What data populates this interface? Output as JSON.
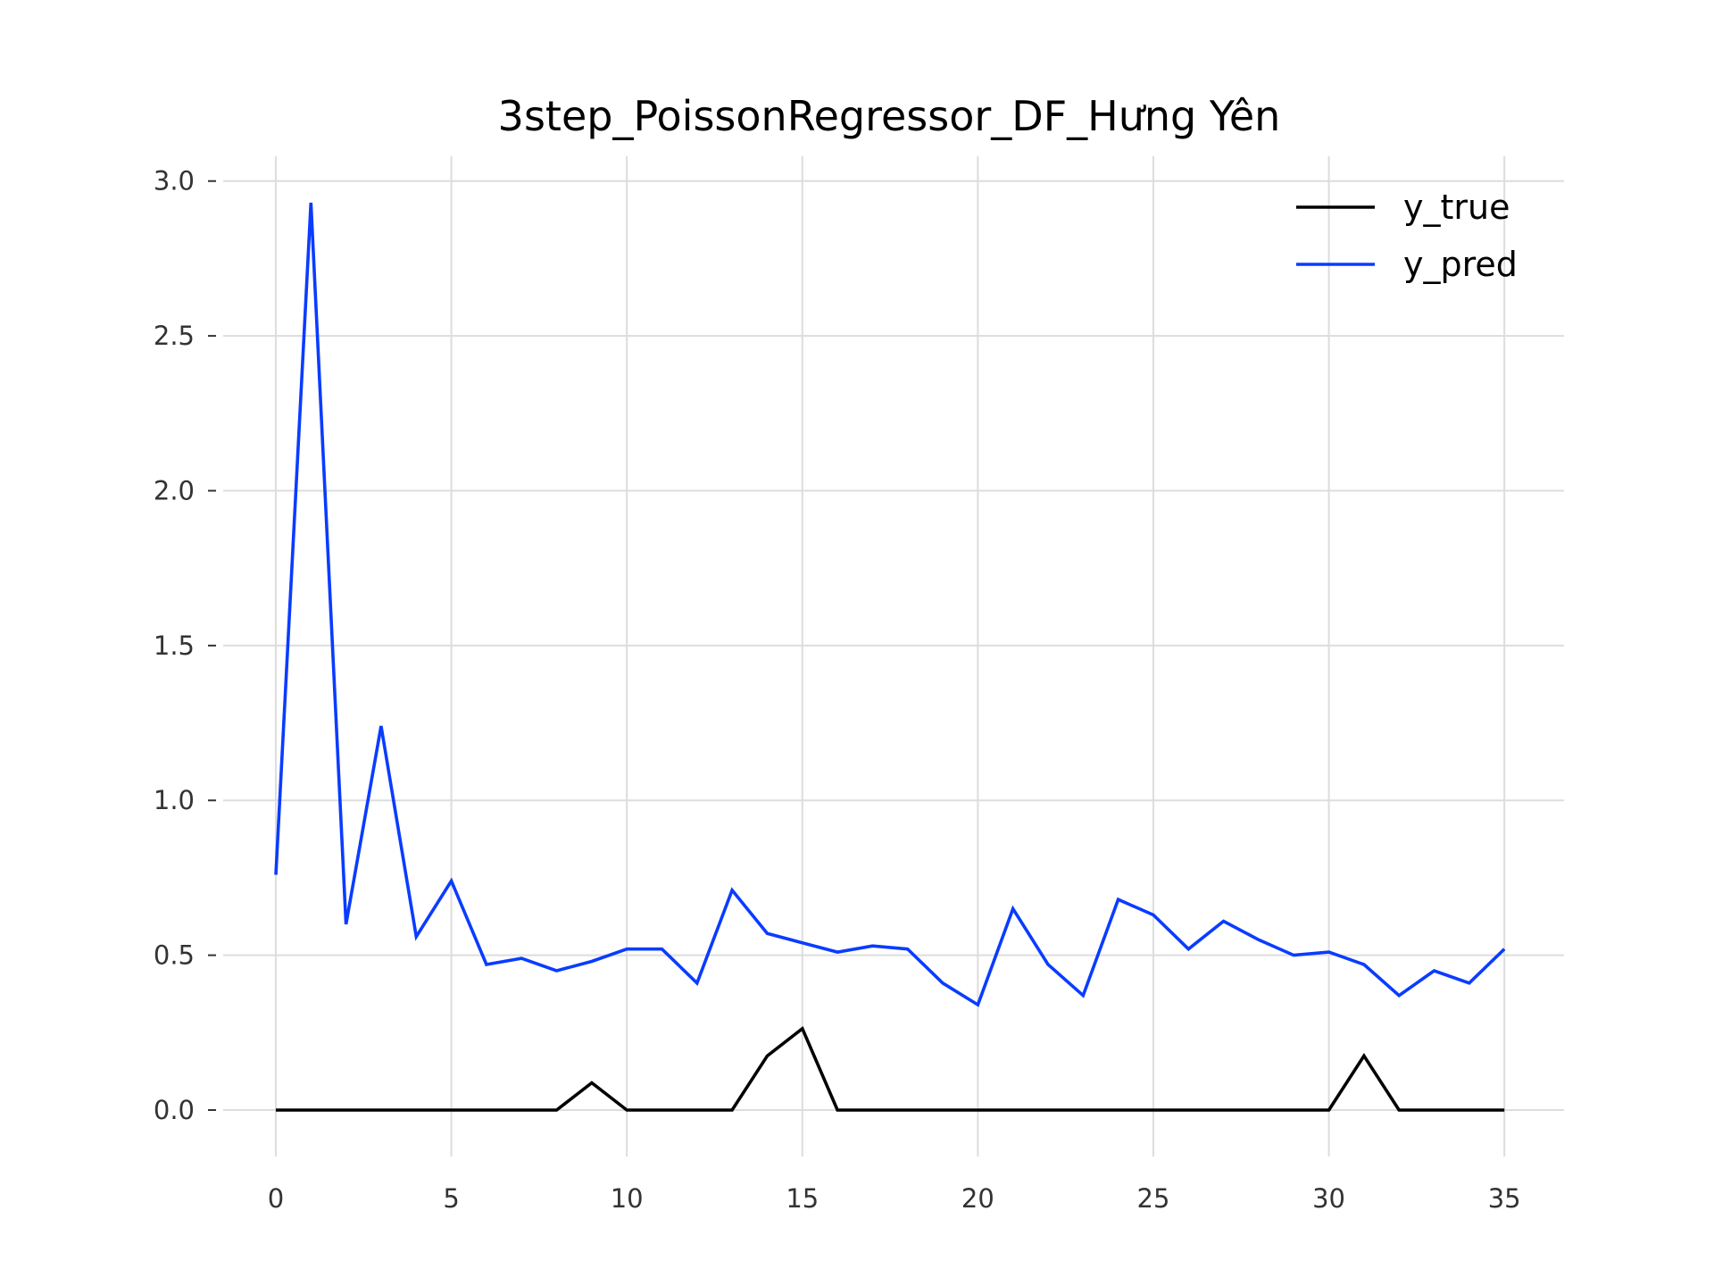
{
  "chart_data": {
    "type": "line",
    "title": "3step_PoissonRegressor_DF_Hưng Yên",
    "xlabel": "",
    "ylabel": "",
    "xlim": [
      -1.5,
      36.7
    ],
    "ylim": [
      -0.15,
      3.08
    ],
    "x_ticks": [
      0,
      5,
      10,
      15,
      20,
      25,
      30,
      35
    ],
    "x_tick_labels": [
      "0",
      "5",
      "10",
      "15",
      "20",
      "25",
      "30",
      "35"
    ],
    "y_ticks": [
      0.0,
      0.5,
      1.0,
      1.5,
      2.0,
      2.5,
      3.0
    ],
    "y_tick_labels": [
      "0.0",
      "0.5",
      "1.0",
      "1.5",
      "2.0",
      "2.5",
      "3.0"
    ],
    "grid": true,
    "legend_position": "top-right",
    "x": [
      0,
      1,
      2,
      3,
      4,
      5,
      6,
      7,
      8,
      9,
      10,
      11,
      12,
      13,
      14,
      15,
      16,
      17,
      18,
      19,
      20,
      21,
      22,
      23,
      24,
      25,
      26,
      27,
      28,
      29,
      30,
      31,
      32,
      33,
      34,
      35
    ],
    "series": [
      {
        "name": "y_true",
        "color": "#000000",
        "values": [
          0,
          0,
          0,
          0,
          0,
          0,
          0,
          0,
          0,
          0.088,
          0,
          0,
          0,
          0,
          0.175,
          0.263,
          0,
          0,
          0,
          0,
          0,
          0,
          0,
          0,
          0,
          0,
          0,
          0,
          0,
          0,
          0,
          0.175,
          0,
          0,
          0,
          0
        ]
      },
      {
        "name": "y_pred",
        "color": "#0a3cff",
        "values": [
          0.76,
          2.93,
          0.6,
          1.24,
          0.56,
          0.74,
          0.47,
          0.49,
          0.45,
          0.48,
          0.52,
          0.52,
          0.41,
          0.71,
          0.57,
          0.54,
          0.51,
          0.53,
          0.52,
          0.41,
          0.34,
          0.65,
          0.47,
          0.37,
          0.68,
          0.63,
          0.52,
          0.61,
          0.55,
          0.5,
          0.51,
          0.47,
          0.37,
          0.45,
          0.41,
          0.52
        ]
      }
    ]
  }
}
